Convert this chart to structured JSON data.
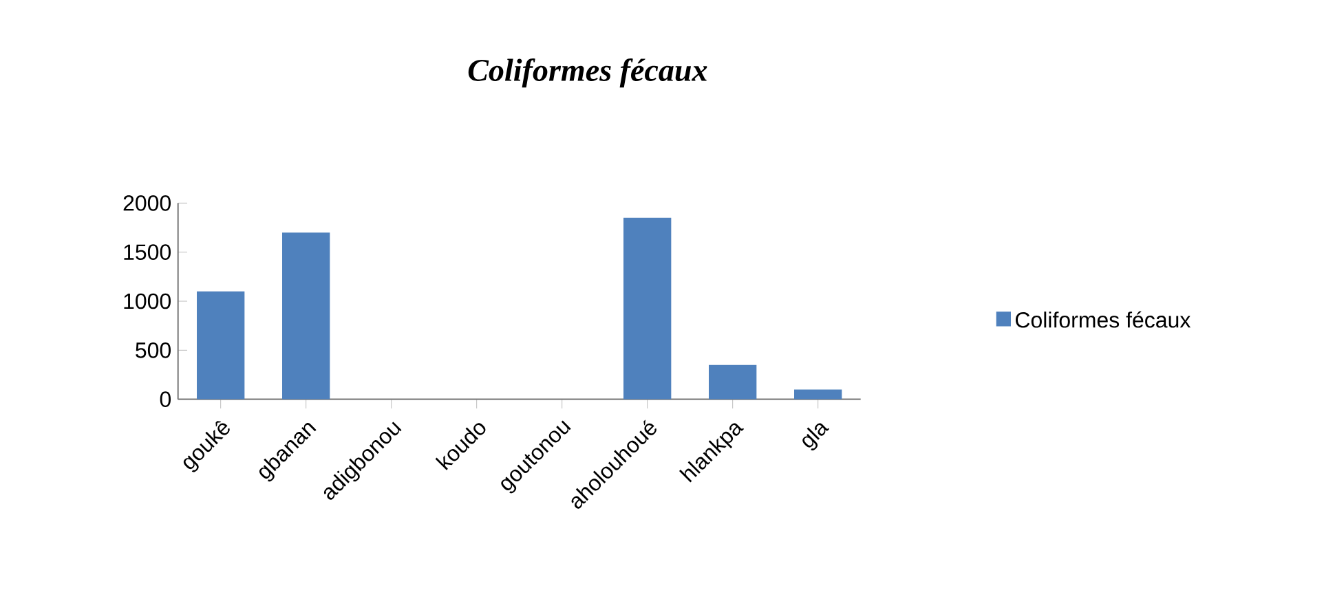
{
  "chart_data": {
    "type": "bar",
    "title": "Coliformes fécaux",
    "categories": [
      "goukê",
      "gbanan",
      "adigbonou",
      "koudo",
      "goutonou",
      "aholouhoué",
      "hlankpa",
      "gla"
    ],
    "series": [
      {
        "name": "Coliformes fécaux",
        "color": "#4f81bd",
        "values": [
          1100,
          1700,
          0,
          0,
          0,
          1850,
          350,
          100
        ]
      }
    ],
    "ylim": [
      0,
      2000
    ],
    "yticks": [
      0,
      500,
      1000,
      1500,
      2000
    ],
    "grid": false,
    "legend": "right"
  }
}
